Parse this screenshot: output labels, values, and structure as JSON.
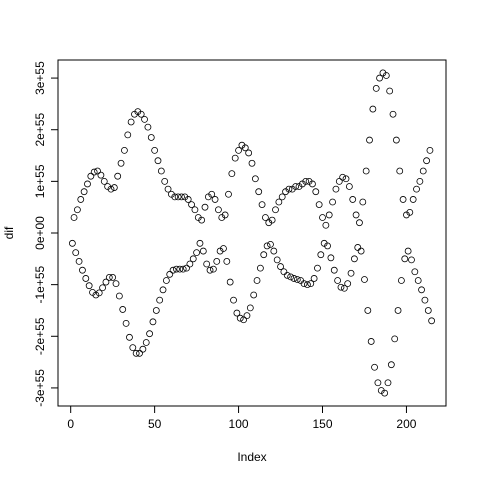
{
  "chart_data": {
    "type": "scatter",
    "x_label": "Index",
    "y_label": "dif",
    "color": "#000000",
    "x": [
      1,
      2,
      3,
      4,
      5,
      6,
      7,
      8,
      9,
      10,
      11,
      12,
      13,
      14,
      15,
      16,
      17,
      18,
      19,
      20,
      21,
      22,
      23,
      24,
      25,
      26,
      27,
      28,
      29,
      30,
      31,
      32,
      33,
      34,
      35,
      36,
      37,
      38,
      39,
      40,
      41,
      42,
      43,
      44,
      45,
      46,
      47,
      48,
      49,
      50,
      51,
      52,
      53,
      54,
      55,
      56,
      57,
      58,
      59,
      60,
      61,
      62,
      63,
      64,
      65,
      66,
      67,
      68,
      69,
      70,
      71,
      72,
      73,
      74,
      75,
      76,
      77,
      78,
      79,
      80,
      81,
      82,
      83,
      84,
      85,
      86,
      87,
      88,
      89,
      90,
      91,
      92,
      93,
      94,
      95,
      96,
      97,
      98,
      99,
      100,
      101,
      102,
      103,
      104,
      105,
      106,
      107,
      108,
      109,
      110,
      111,
      112,
      113,
      114,
      115,
      116,
      117,
      118,
      119,
      120,
      121,
      122,
      123,
      124,
      125,
      126,
      127,
      128,
      129,
      130,
      131,
      132,
      133,
      134,
      135,
      136,
      137,
      138,
      139,
      140,
      141,
      142,
      143,
      144,
      145,
      146,
      147,
      148,
      149,
      150,
      151,
      152,
      153,
      154,
      155,
      156,
      157,
      158,
      159,
      160,
      161,
      162,
      163,
      164,
      165,
      166,
      167,
      168,
      169,
      170,
      171,
      172,
      173,
      174,
      175,
      176,
      177,
      178,
      179,
      180,
      181,
      182,
      183,
      184,
      185,
      186,
      187,
      188,
      189,
      190,
      191,
      192,
      193,
      194,
      195,
      196,
      197,
      198,
      199,
      200,
      201,
      202,
      203,
      204,
      205,
      206,
      207,
      208,
      209,
      210,
      211,
      212,
      213,
      214,
      215
    ],
    "values": [
      -2e+54,
      3e+54,
      -3.8e+54,
      4.5e+54,
      -5.5e+54,
      6.5e+54,
      -7.2e+54,
      8e+54,
      -8.8e+54,
      9.5e+54,
      -1.02e+55,
      1.1e+55,
      -1.15e+55,
      1.18e+55,
      -1.2e+55,
      1.2e+55,
      -1.16e+55,
      1.12e+55,
      -1.06e+55,
      1e+55,
      -9.5e+54,
      9e+54,
      -8.6e+54,
      8.5e+54,
      -8.6e+54,
      8.8e+54,
      -9.8e+54,
      1.1e+55,
      -1.22e+55,
      1.35e+55,
      -1.48e+55,
      1.6e+55,
      -1.75e+55,
      1.9e+55,
      -2.02e+55,
      2.15e+55,
      -2.22e+55,
      2.3e+55,
      -2.33e+55,
      2.35e+55,
      -2.33e+55,
      2.3e+55,
      -2.25e+55,
      2.2e+55,
      -2.12e+55,
      2.05e+55,
      -1.95e+55,
      1.85e+55,
      -1.72e+55,
      1.6e+55,
      -1.5e+55,
      1.4e+55,
      -1.3e+55,
      1.2e+55,
      -1.1e+55,
      1e+55,
      -9.2e+54,
      8.5e+54,
      -8e+54,
      7.5e+54,
      -7.2e+54,
      7e+54,
      -7e+54,
      7e+54,
      -7e+54,
      7e+54,
      -7e+54,
      7e+54,
      -6.8e+54,
      6.5e+54,
      -6e+54,
      5.5e+54,
      -5e+54,
      4.5e+54,
      -3.8e+54,
      3e+54,
      -2e+54,
      2.5e+54,
      -3.5e+54,
      5e+54,
      -6e+54,
      7e+54,
      -7.2e+54,
      7.5e+54,
      -7e+54,
      6.5e+54,
      -5.5e+54,
      4.5e+54,
      -3.5e+54,
      3e+54,
      -3e+54,
      3.5e+54,
      -5.5e+54,
      7.5e+54,
      -9.5e+54,
      1.15e+55,
      -1.3e+55,
      1.45e+55,
      -1.55e+55,
      1.6e+55,
      -1.65e+55,
      1.7e+55,
      -1.68e+55,
      1.65e+55,
      -1.6e+55,
      1.55e+55,
      -1.45e+55,
      1.35e+55,
      -1.2e+55,
      1.05e+55,
      -9.2e+54,
      8e+54,
      -6.8e+54,
      5.5e+54,
      -4.2e+54,
      3e+54,
      -2.5e+54,
      2e+54,
      -2.2e+54,
      2.5e+54,
      -3.5e+54,
      4.5e+54,
      -5.2e+54,
      6e+54,
      -6.5e+54,
      7e+54,
      -7.5e+54,
      8e+54,
      -8.2e+54,
      8.5e+54,
      -8.5e+54,
      8.5e+54,
      -8.8e+54,
      9e+54,
      -9e+54,
      9e+54,
      -9.2e+54,
      9.5e+54,
      -9.8e+54,
      1e+55,
      -1e+55,
      1e+55,
      -9.8e+54,
      9.5e+54,
      -8.8e+54,
      8e+54,
      -6.8e+54,
      5.5e+54,
      -4.2e+54,
      3e+54,
      -2e+54,
      1.5e+54,
      -2.5e+54,
      3.5e+54,
      -4.8e+54,
      6e+54,
      -7.2e+54,
      8.5e+54,
      -9.2e+54,
      1e+55,
      -1.05e+55,
      1.08e+55,
      -1.07e+55,
      1.05e+55,
      -9.8e+54,
      9e+54,
      -7.8e+54,
      6.5e+54,
      -5e+54,
      3.5e+54,
      -2.8e+54,
      2e+54,
      -3.5e+54,
      6e+54,
      -9e+54,
      1.2e+55,
      -1.5e+55,
      1.8e+55,
      -2.1e+55,
      2.4e+55,
      -2.6e+55,
      2.8e+55,
      -2.9e+55,
      3e+55,
      -3.05e+55,
      3.1e+55,
      -3.1e+55,
      3.05e+55,
      -2.9e+55,
      2.75e+55,
      -2.55e+55,
      2.3e+55,
      -2.05e+55,
      1.8e+55,
      -1.5e+55,
      1.2e+55,
      -9.2e+54,
      6.5e+54,
      -5e+54,
      3.5e+54,
      -3.5e+54,
      4e+54,
      -5.2e+54,
      6.5e+54,
      -7.5e+54,
      8.5e+54,
      -9.2e+54,
      1e+55,
      -1.1e+55,
      1.2e+55,
      -1.3e+55,
      1.4e+55,
      -1.5e+55,
      1.6e+55,
      -1.7e+55
    ],
    "xlim": [
      -7.56,
      223.56
    ],
    "xticks": [
      0,
      50,
      100,
      150,
      200
    ],
    "ylim": [
      -3.35e+55,
      3.35e+55
    ],
    "yticks": [
      {
        "value": -3e+55,
        "label": "-3e+55"
      },
      {
        "value": -2e+55,
        "label": "-2e+55"
      },
      {
        "value": -1e+55,
        "label": "-1e+55"
      },
      {
        "value": 0,
        "label": "0e+00"
      },
      {
        "value": 1e+55,
        "label": "1e+55"
      },
      {
        "value": 2e+55,
        "label": "2e+55"
      },
      {
        "value": 3e+55,
        "label": "3e+55"
      }
    ]
  }
}
